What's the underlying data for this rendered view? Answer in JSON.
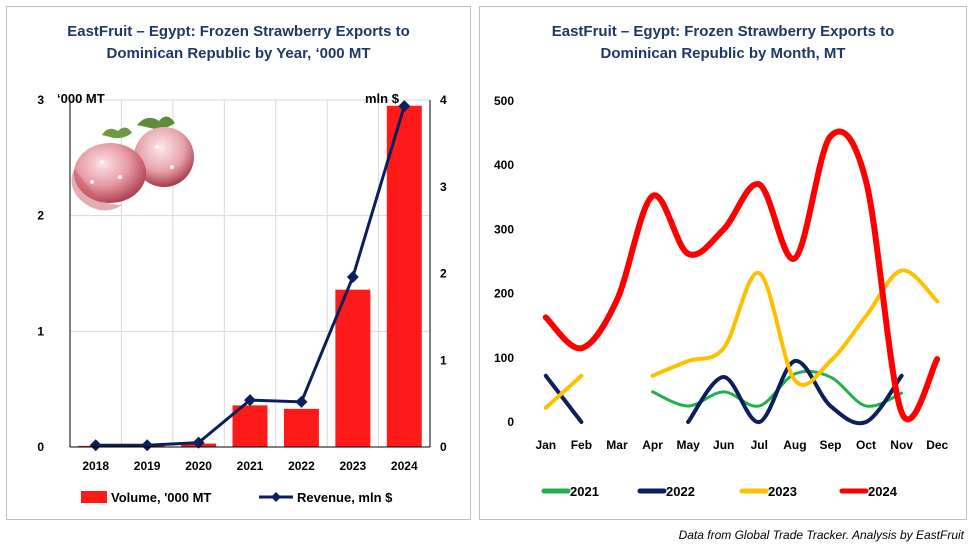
{
  "source_note": "Data from Global Trade Tracker. Analysis by EastFruit",
  "colors": {
    "bar": "#ff1a1a",
    "revenue": "#0b1f5c",
    "s2021": "#22b04b",
    "s2022": "#0b1f5c",
    "s2023": "#ffc000",
    "s2024": "#ff0000",
    "grid": "#d9d9d9",
    "title": "#1f3864"
  },
  "chart_data": [
    {
      "type": "bar",
      "title_line1": "EastFruit – Egypt: Frozen Strawberry Exports to",
      "title_line2": "Dominican Republic by Year, ‘000 MT",
      "left_unit": "‘000 MT",
      "right_unit": "mln $",
      "categories": [
        "2018",
        "2019",
        "2020",
        "2021",
        "2022",
        "2023",
        "2024"
      ],
      "ylim_left": [
        0,
        3
      ],
      "yticks_left": [
        "0",
        "1",
        "2",
        "3"
      ],
      "ylim_right": [
        0,
        4
      ],
      "yticks_right": [
        "0",
        "1",
        "2",
        "3",
        "4"
      ],
      "grid": true,
      "legend_position": "bottom",
      "series": [
        {
          "name": "Volume, '000 MT",
          "kind": "bar",
          "axis": "left",
          "values": [
            0.01,
            0.01,
            0.03,
            0.36,
            0.33,
            1.36,
            2.95
          ]
        },
        {
          "name": "Revenue, mln $",
          "kind": "line",
          "axis": "right",
          "values": [
            0.02,
            0.02,
            0.05,
            0.54,
            0.52,
            1.96,
            3.93
          ]
        }
      ],
      "image": "frozen-strawberries"
    },
    {
      "type": "line",
      "title_line1": "EastFruit – Egypt: Frozen Strawberry Exports to",
      "title_line2": "Dominican Republic by Month, MT",
      "categories": [
        "Jan",
        "Feb",
        "Mar",
        "Apr",
        "May",
        "Jun",
        "Jul",
        "Aug",
        "Sep",
        "Oct",
        "Nov",
        "Dec"
      ],
      "ylim": [
        0,
        500
      ],
      "yticks": [
        "0",
        "100",
        "200",
        "300",
        "400",
        "500"
      ],
      "grid": false,
      "legend_position": "bottom",
      "series": [
        {
          "name": "2021",
          "values": [
            null,
            null,
            null,
            47,
            25,
            47,
            25,
            75,
            70,
            25,
            45,
            null
          ]
        },
        {
          "name": "2022",
          "values": [
            72,
            0,
            null,
            null,
            0,
            70,
            0,
            95,
            25,
            0,
            72,
            null
          ]
        },
        {
          "name": "2023",
          "values": [
            22,
            72,
            null,
            72,
            95,
            115,
            232,
            65,
            95,
            165,
            236,
            188
          ]
        },
        {
          "name": "2024",
          "values": [
            163,
            115,
            190,
            352,
            262,
            300,
            370,
            255,
            445,
            375,
            15,
            98
          ]
        }
      ]
    }
  ]
}
